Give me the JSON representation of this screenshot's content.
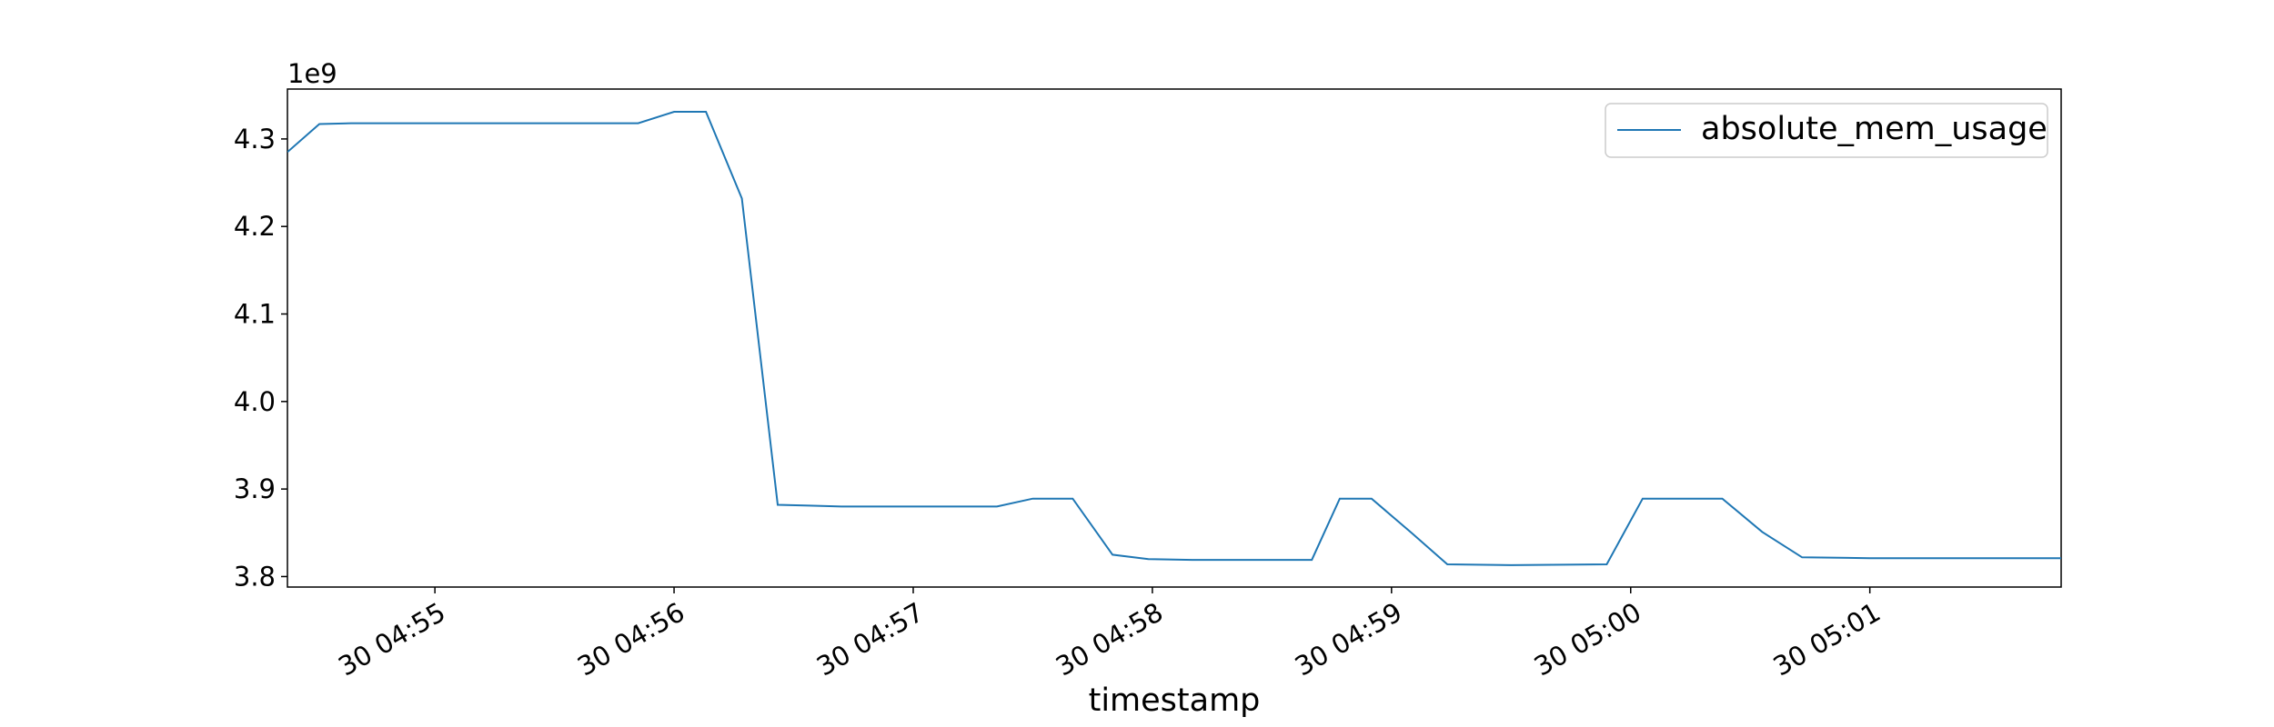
{
  "chart_data": {
    "type": "line",
    "title": "",
    "xlabel": "timestamp",
    "ylabel": "",
    "y_offset_label": "1e9",
    "x_tick_labels": [
      "30 04:55",
      "30 04:56",
      "30 04:57",
      "30 04:58",
      "30 04:59",
      "30 05:00",
      "30 05:01"
    ],
    "x_tick_times": [
      "04:55:00",
      "04:56:00",
      "04:57:00",
      "04:58:00",
      "04:59:00",
      "05:00:00",
      "05:01:00"
    ],
    "y_tick_labels": [
      "3.8",
      "3.9",
      "4.0",
      "4.1",
      "4.2",
      "4.3"
    ],
    "y_tick_values": [
      3.8,
      3.9,
      4.0,
      4.1,
      4.2,
      4.3
    ],
    "xlim": [
      "04:54:23",
      "05:01:48"
    ],
    "ylim": [
      3.788,
      4.357
    ],
    "grid": false,
    "legend_location": "upper right",
    "series": [
      {
        "name": "absolute_mem_usage",
        "color": "#1f77b4",
        "x": [
          "04:54:23",
          "04:54:31",
          "04:54:39",
          "04:55:01",
          "04:55:21",
          "04:55:51",
          "04:56:00",
          "04:56:08",
          "04:56:17",
          "04:56:26",
          "04:56:34",
          "04:56:42",
          "04:57:00",
          "04:57:11",
          "04:57:21",
          "04:57:30",
          "04:57:40",
          "04:57:50",
          "04:57:59",
          "04:58:10",
          "04:58:30",
          "04:58:40",
          "04:58:47",
          "04:58:55",
          "04:59:05",
          "04:59:14",
          "04:59:30",
          "04:59:54",
          "05:00:03",
          "05:00:13",
          "05:00:23",
          "05:00:33",
          "05:00:43",
          "05:01:00",
          "05:01:20",
          "05:01:48"
        ],
        "values": [
          4.285,
          4.317,
          4.318,
          4.318,
          4.318,
          4.318,
          4.331,
          4.331,
          4.232,
          3.882,
          3.881,
          3.88,
          3.88,
          3.88,
          3.88,
          3.889,
          3.889,
          3.825,
          3.82,
          3.819,
          3.819,
          3.819,
          3.889,
          3.889,
          3.85,
          3.814,
          3.813,
          3.814,
          3.889,
          3.889,
          3.889,
          3.851,
          3.822,
          3.821,
          3.821,
          3.821
        ]
      }
    ]
  }
}
